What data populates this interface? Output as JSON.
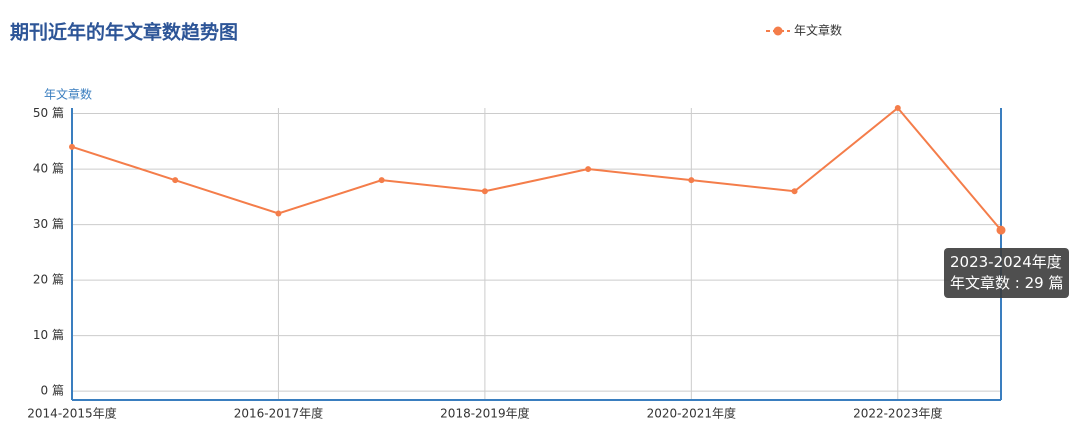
{
  "chart_data": {
    "type": "line",
    "title": "期刊近年的年文章数趋势图",
    "y_axis_label": "年文章数",
    "categories": [
      "2014-2015年度",
      null,
      "2016-2017年度",
      null,
      "2018-2019年度",
      null,
      "2020-2021年度",
      null,
      "2022-2023年度",
      null
    ],
    "series": [
      {
        "name": "年文章数",
        "color": "#f47d4a",
        "values": [
          44,
          38,
          32,
          38,
          36,
          40,
          38,
          36,
          51,
          29
        ]
      }
    ],
    "ylim": [
      -1.6,
      51
    ],
    "yticks": [
      {
        "value": 0,
        "label": "0 篇"
      },
      {
        "value": 10,
        "label": "10 篇"
      },
      {
        "value": 20,
        "label": "20 篇"
      },
      {
        "value": 30,
        "label": "30 篇"
      },
      {
        "value": 40,
        "label": "40 篇"
      },
      {
        "value": 50,
        "label": "50 篇"
      }
    ],
    "grid": true,
    "legend": "top-right",
    "tooltip": {
      "title": "2023-2024年度",
      "text": "年文章数 : 29 篇"
    }
  }
}
